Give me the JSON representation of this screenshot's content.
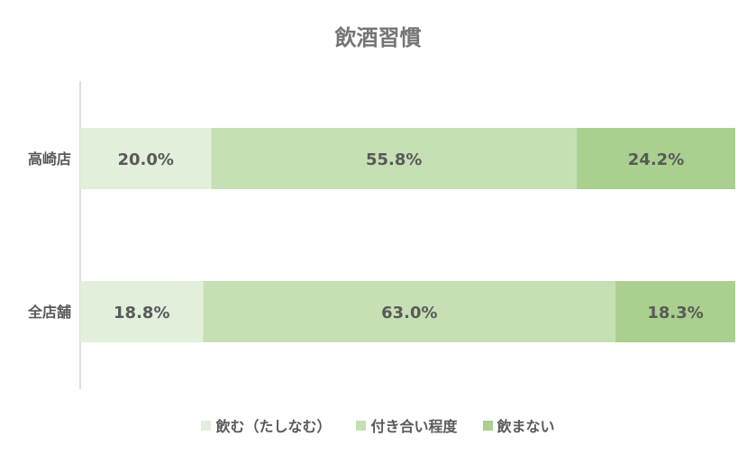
{
  "chart_data": {
    "type": "bar",
    "orientation": "horizontal",
    "stacked": "percent",
    "title": "飲酒習慣",
    "categories": [
      "高崎店",
      "全店舗"
    ],
    "series": [
      {
        "name": "飲む（たしなむ）",
        "values": [
          20.0,
          18.8
        ],
        "labels": [
          "20.0%",
          "18.8%"
        ],
        "color": "#E2EFDA"
      },
      {
        "name": "付き合い程度",
        "values": [
          55.8,
          63.0
        ],
        "labels": [
          "55.8%",
          "63.0%"
        ],
        "color": "#C6E0B4"
      },
      {
        "name": "飲まない",
        "values": [
          24.2,
          18.3
        ],
        "labels": [
          "24.2%",
          "18.3%"
        ],
        "color": "#A9D08E"
      }
    ],
    "xlim": [
      0,
      100
    ],
    "grid": false,
    "legend": "bottom"
  }
}
